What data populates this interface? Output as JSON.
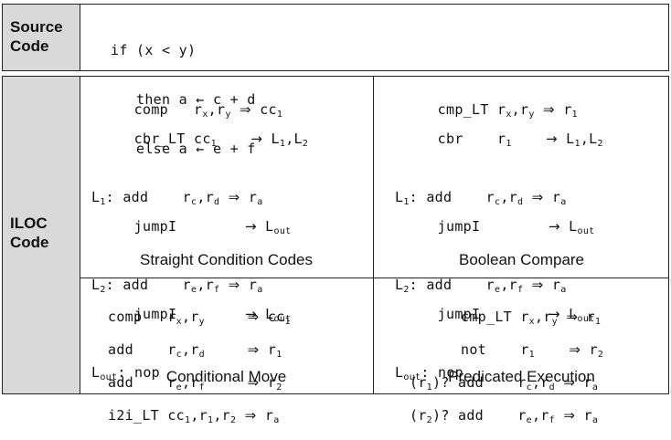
{
  "source": {
    "label_line1": "Source",
    "label_line2": "Code",
    "lines": [
      "if (x < y)",
      "   then a ← c + d",
      "   else a ← e + f"
    ]
  },
  "iloc": {
    "label_line1": "ILOC",
    "label_line2": "Code"
  },
  "straight": {
    "caption": "Straight Condition Codes",
    "l1": "L",
    "l1sub": "1",
    "l2": "L",
    "l2sub": "2",
    "lout": "L",
    "loutsub": "out",
    "op_comp": "comp",
    "op_cbr": "cbr_LT",
    "op_add": "add",
    "op_jump": "jumpI",
    "op_nop": "nop",
    "cc": "cc",
    "r": "r"
  },
  "boolean": {
    "caption": "Boolean Compare",
    "op_cmp": "cmp_LT",
    "op_cbr": "cbr",
    "op_add": "add",
    "op_jump": "jumpI",
    "op_nop": "nop"
  },
  "cmove": {
    "caption": "Conditional Move",
    "op_comp": "comp",
    "op_add": "add",
    "op_i2i": "i2i_LT"
  },
  "pred": {
    "caption": "Predicated Execution",
    "op_cmp": "cmp_LT",
    "op_not": "not",
    "op_add": "add",
    "pred1": "(r",
    "pred2": "(r"
  }
}
